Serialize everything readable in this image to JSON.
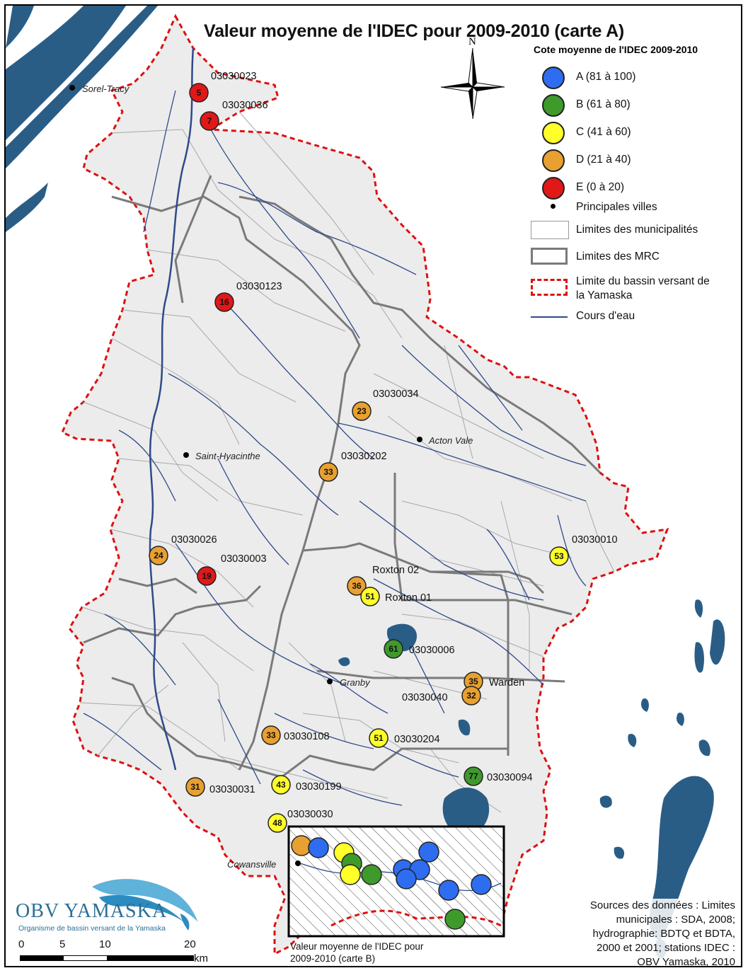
{
  "title": "Valeur moyenne de l'IDEC pour 2009-2010 (carte A)",
  "north_label": "N",
  "legend": {
    "title": "Cote moyenne de l'IDEC 2009-2010",
    "classes": [
      {
        "label": "A (81 à 100)",
        "color": "#2e6df0"
      },
      {
        "label": "B (61 à 80)",
        "color": "#3f9a2c"
      },
      {
        "label": "C (41 à 60)",
        "color": "#ffff2a"
      },
      {
        "label": "D (21 à 40)",
        "color": "#e8a030"
      },
      {
        "label": "E (0 à 20)",
        "color": "#e01818"
      }
    ],
    "towns": "Principales villes",
    "municipal_limits": "Limites des municipalités",
    "mrc_limits": "Limites des MRC",
    "basin_limit_1": "Limite du bassin versant de",
    "basin_limit_2": "la Yamaska",
    "rivers": "Cours d'eau"
  },
  "cities": [
    "Sorel-Tracy",
    "Saint-Hyacinthe",
    "Acton Vale",
    "Granby",
    "Cowansville"
  ],
  "stations": [
    {
      "code": "03030023",
      "value": "5",
      "class": "E"
    },
    {
      "code": "03030036",
      "value": "7",
      "class": "E"
    },
    {
      "code": "03030123",
      "value": "16",
      "class": "E"
    },
    {
      "code": "03030034",
      "value": "23",
      "class": "D"
    },
    {
      "code": "03030202",
      "value": "33",
      "class": "D"
    },
    {
      "code": "03030026",
      "value": "24",
      "class": "D"
    },
    {
      "code": "03030003",
      "value": "19",
      "class": "E"
    },
    {
      "code": "03030010",
      "value": "53",
      "class": "C"
    },
    {
      "code": "Roxton 02",
      "value": "36",
      "class": "D"
    },
    {
      "code": "Roxton 01",
      "value": "51",
      "class": "C"
    },
    {
      "code": "03030006",
      "value": "61",
      "class": "B"
    },
    {
      "code": "Warden",
      "value": "35",
      "class": "D"
    },
    {
      "code": "03030040",
      "value": "32",
      "class": "D"
    },
    {
      "code": "03030108",
      "value": "33",
      "class": "D"
    },
    {
      "code": "03030204",
      "value": "51",
      "class": "C"
    },
    {
      "code": "03030094",
      "value": "77",
      "class": "B"
    },
    {
      "code": "03030031",
      "value": "31",
      "class": "D"
    },
    {
      "code": "03030199",
      "value": "43",
      "class": "C"
    },
    {
      "code": "03030030",
      "value": "48",
      "class": "C"
    }
  ],
  "inset_stations": [
    "D",
    "A",
    "C",
    "B",
    "C",
    "B",
    "A",
    "A",
    "A",
    "A",
    "A",
    "A",
    "B"
  ],
  "inset_caption_1": "Valeur moyenne de l'IDEC pour",
  "inset_caption_2": "2009-2010 (carte B)",
  "scale": {
    "ticks": [
      "0",
      "5",
      "10",
      "20"
    ],
    "unit": "km"
  },
  "logo": {
    "name": "OBV YAMASKA",
    "subtitle": "Organisme de bassin versant de la Yamaska"
  },
  "sources": [
    "Sources des données : Limites",
    "municipales : SDA, 2008;",
    "hydrographie: BDTQ et BDTA,",
    "2000 et 2001; stations IDEC :",
    "OBV Yamaska, 2010"
  ]
}
